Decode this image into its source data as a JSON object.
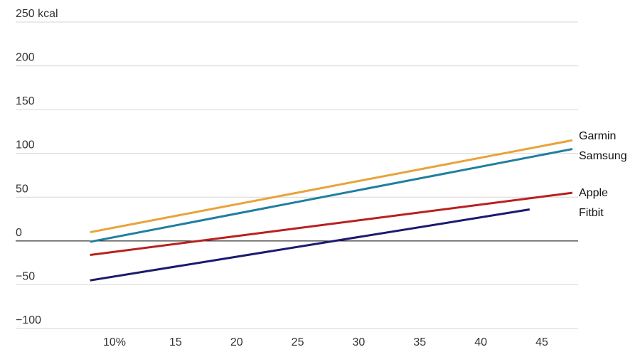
{
  "chart_data": {
    "type": "line",
    "y_unit_label": "250 kcal",
    "ylim": [
      -100,
      250
    ],
    "xlim": [
      5,
      47.5
    ],
    "y_ticks": [
      {
        "value": 250,
        "label": "250 kcal"
      },
      {
        "value": 200,
        "label": "200"
      },
      {
        "value": 150,
        "label": "150"
      },
      {
        "value": 100,
        "label": "100"
      },
      {
        "value": 50,
        "label": "50"
      },
      {
        "value": 0,
        "label": "0"
      },
      {
        "value": -50,
        "label": "−50"
      },
      {
        "value": -100,
        "label": "−100"
      }
    ],
    "x_ticks": [
      {
        "value": 10,
        "label": "10%"
      },
      {
        "value": 15,
        "label": "15"
      },
      {
        "value": 20,
        "label": "20"
      },
      {
        "value": 25,
        "label": "25"
      },
      {
        "value": 30,
        "label": "30"
      },
      {
        "value": 35,
        "label": "35"
      },
      {
        "value": 40,
        "label": "40"
      },
      {
        "value": 45,
        "label": "45"
      }
    ],
    "grid": true,
    "legend": "direct labels at line ends (right)",
    "series": [
      {
        "name": "Garmin",
        "color": "#e8a33a",
        "points": [
          [
            8,
            10
          ],
          [
            47.5,
            115
          ]
        ]
      },
      {
        "name": "Samsung",
        "color": "#1f7fa0",
        "points": [
          [
            8,
            -1
          ],
          [
            47.5,
            105
          ]
        ]
      },
      {
        "name": "Apple",
        "color": "#b8201f",
        "points": [
          [
            8,
            -16
          ],
          [
            47.5,
            55
          ]
        ]
      },
      {
        "name": "Fitbit",
        "color": "#1c1a6e",
        "points": [
          [
            8,
            -45
          ],
          [
            44,
            36
          ]
        ]
      }
    ]
  }
}
